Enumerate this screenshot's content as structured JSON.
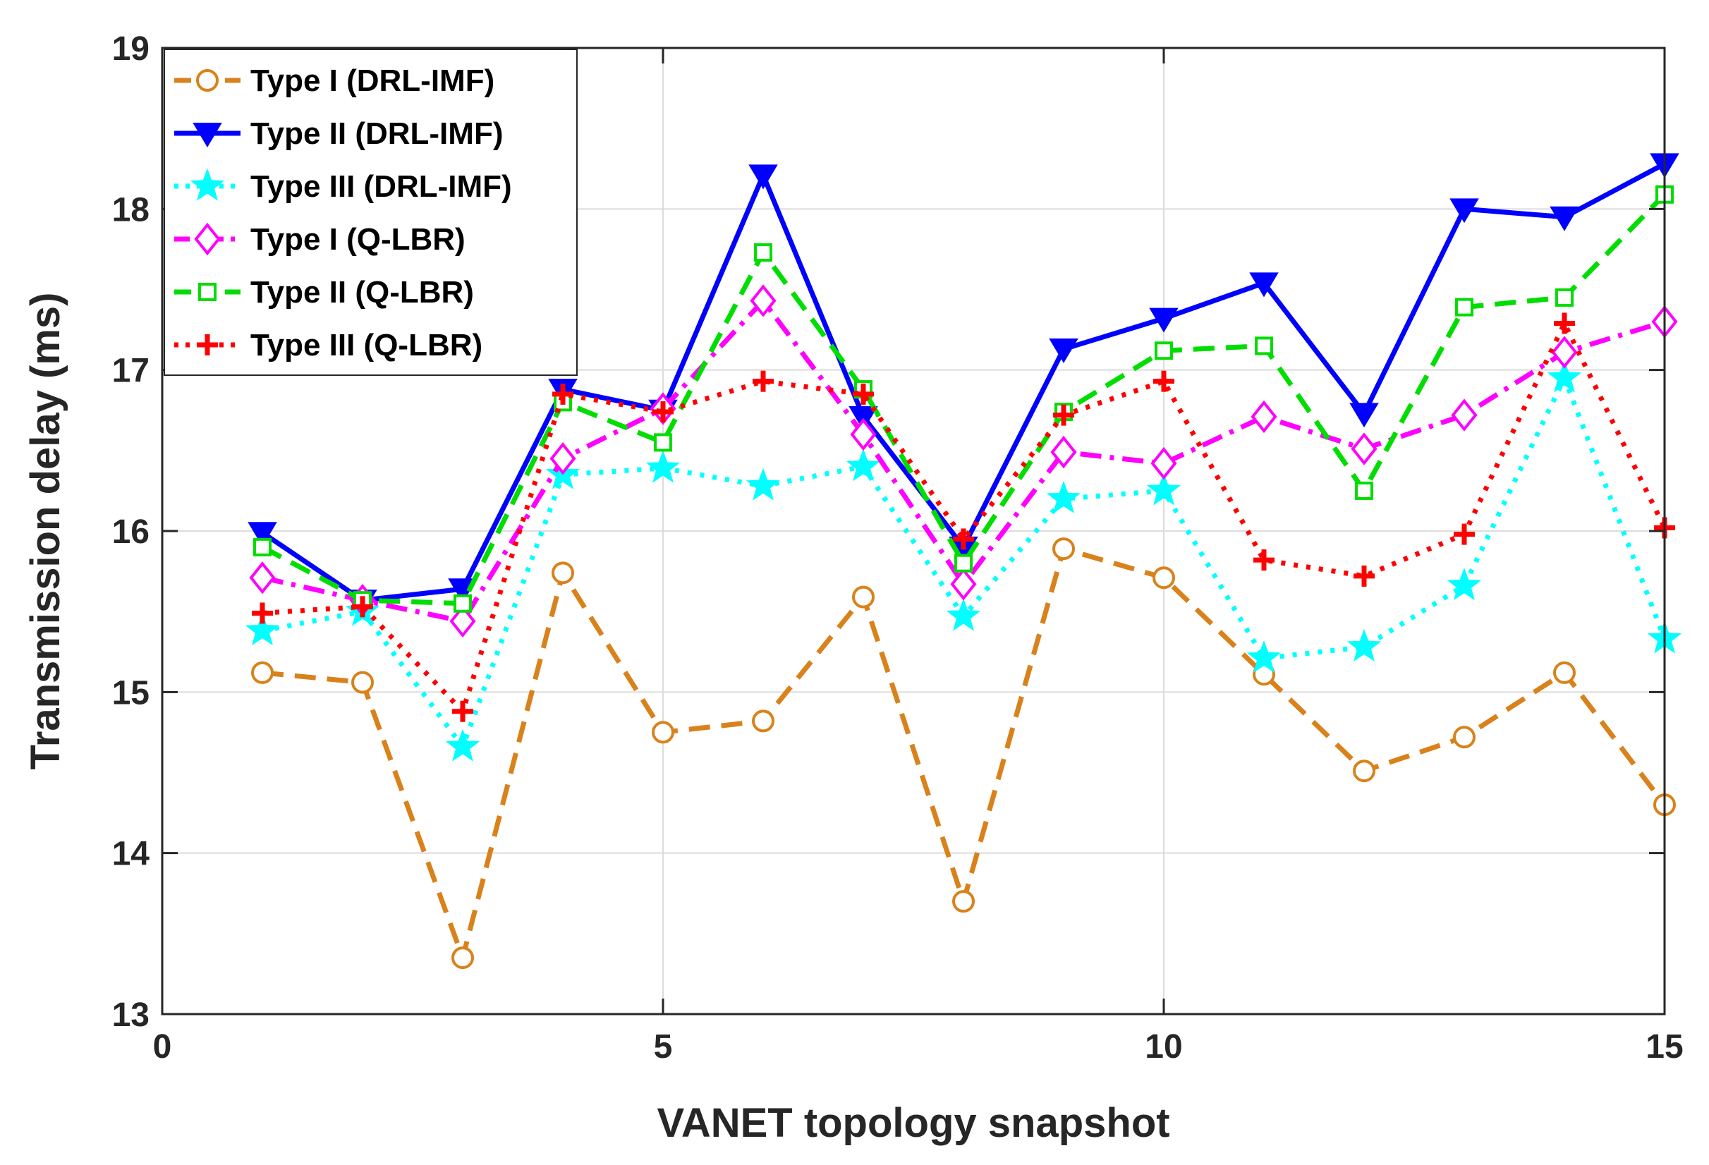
{
  "chart_data": {
    "type": "line",
    "title": "",
    "xlabel": "VANET topology snapshot",
    "ylabel": "Transmission delay (ms)",
    "xlim": [
      0,
      15
    ],
    "ylim": [
      13,
      19
    ],
    "xticks": [
      0,
      5,
      10,
      15
    ],
    "yticks": [
      13,
      14,
      15,
      16,
      17,
      18,
      19
    ],
    "grid": true,
    "legend_position": "top-left",
    "x": [
      1,
      2,
      3,
      4,
      5,
      6,
      7,
      8,
      9,
      10,
      11,
      12,
      13,
      14,
      15
    ],
    "series": [
      {
        "name": "Type I (DRL-IMF)",
        "color": "#D9821B",
        "marker": "circle",
        "dash": "dashed",
        "values": [
          15.12,
          15.06,
          13.35,
          15.74,
          14.75,
          14.82,
          15.59,
          13.7,
          15.89,
          15.71,
          15.11,
          14.51,
          14.72,
          15.12,
          14.3
        ]
      },
      {
        "name": "Type II (DRL-IMF)",
        "color": "#0000FF",
        "marker": "triangle-down",
        "dash": "solid",
        "values": [
          15.99,
          15.57,
          15.64,
          16.88,
          16.75,
          18.21,
          16.71,
          15.9,
          17.13,
          17.32,
          17.54,
          16.73,
          18.0,
          17.95,
          18.28
        ]
      },
      {
        "name": "Type III (DRL-IMF)",
        "color": "#00FFFF",
        "marker": "star",
        "dash": "dotted",
        "values": [
          15.38,
          15.5,
          14.66,
          16.35,
          16.39,
          16.28,
          16.4,
          15.47,
          16.2,
          16.25,
          15.21,
          15.28,
          15.66,
          16.95,
          15.33
        ]
      },
      {
        "name": "Type I (Q-LBR)",
        "color": "#FF00FF",
        "marker": "diamond",
        "dash": "dashdot",
        "values": [
          15.71,
          15.57,
          15.44,
          16.45,
          16.76,
          17.43,
          16.6,
          15.67,
          16.49,
          16.42,
          16.71,
          16.51,
          16.72,
          17.11,
          17.3
        ]
      },
      {
        "name": "Type II (Q-LBR)",
        "color": "#00DD00",
        "marker": "square",
        "dash": "dashed",
        "values": [
          15.9,
          15.57,
          15.55,
          16.8,
          16.55,
          17.73,
          16.88,
          15.8,
          16.74,
          17.12,
          17.15,
          16.25,
          17.39,
          17.45,
          18.09
        ]
      },
      {
        "name": "Type III (Q-LBR)",
        "color": "#FF0000",
        "marker": "plus",
        "dash": "dotted",
        "values": [
          15.49,
          15.53,
          14.88,
          16.85,
          16.74,
          16.93,
          16.85,
          15.95,
          16.72,
          16.93,
          15.82,
          15.72,
          15.98,
          17.29,
          16.02
        ]
      }
    ]
  }
}
